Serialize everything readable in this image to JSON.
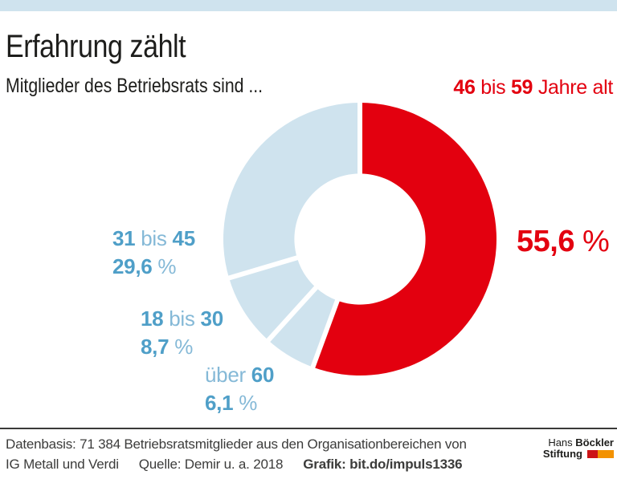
{
  "colors": {
    "red": "#e3000f",
    "light_blue": "#cfe3ee",
    "label_blue": "#4f9fc8",
    "label_blue_light": "#85b9d7",
    "text_dark": "#1d1d1b",
    "footer_gray": "#3c3c3b",
    "divider": "#3a3a39",
    "logo_red": "#cc1316",
    "logo_orange": "#f39200"
  },
  "header": {
    "title": "Erfahrung zählt",
    "subtitle": "Mitglieder des Betriebsrats sind ...",
    "highlight": {
      "num1": "46",
      "word": "bis",
      "num2": "59",
      "rest": "Jahre alt"
    }
  },
  "chart_data": {
    "type": "pie",
    "subtype": "donut",
    "title": "Erfahrung zählt",
    "subtitle": "Mitglieder des Betriebsrats sind ...",
    "unit": "%",
    "start_angle_deg": 0,
    "direction": "clockwise",
    "inner_radius_ratio": 0.48,
    "separator_color": "#ffffff",
    "separator_width": 6,
    "slices": [
      {
        "id": "46-59",
        "label": "46 bis 59 Jahre alt",
        "value": 55.6,
        "display_value": "55,6 %",
        "color": "#e3000f"
      },
      {
        "id": "ueber-60",
        "label": "über 60",
        "value": 6.1,
        "display_value": "6,1 %",
        "color": "#cfe3ee"
      },
      {
        "id": "18-30",
        "label": "18 bis 30",
        "value": 8.7,
        "display_value": "8,7 %",
        "color": "#cfe3ee"
      },
      {
        "id": "31-45",
        "label": "31 bis 45",
        "value": 29.6,
        "display_value": "29,6 %",
        "color": "#cfe3ee"
      }
    ]
  },
  "chart_labels": {
    "big": {
      "num": "55,6",
      "sign": "%"
    },
    "side": [
      {
        "num1": "31",
        "word": "bis",
        "num2": "45",
        "pct": "29,6",
        "sign": "%"
      },
      {
        "num1": "18",
        "word": "bis",
        "num2": "30",
        "pct": "8,7",
        "sign": "%"
      },
      {
        "word": "über",
        "num2": "60",
        "pct": "6,1",
        "sign": "%"
      }
    ]
  },
  "footer": {
    "line1": "Datenbasis: 71 384 Betriebsratsmitglieder aus den Organisationbereichen von",
    "line2_left": "IG Metall und Verdi",
    "line2_source": "Quelle: Demir u. a. 2018",
    "line2_grafik": "Grafik: bit.do/impuls1336"
  },
  "logo": {
    "hans": "Hans",
    "boeckler": "Böckler",
    "stiftung": "Stiftung"
  }
}
